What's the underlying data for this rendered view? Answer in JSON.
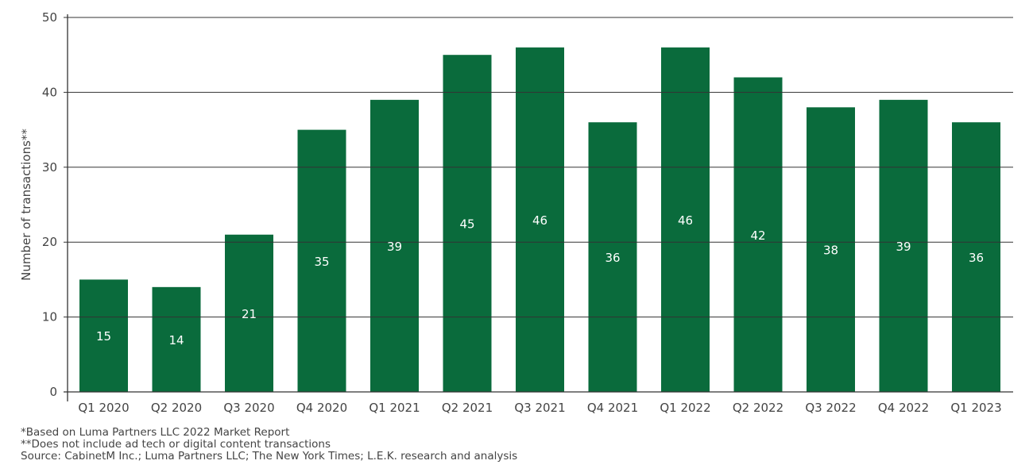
{
  "chart_data": {
    "type": "bar",
    "title": "",
    "xlabel": "",
    "ylabel": "Number of transactions**",
    "ylim": [
      0,
      50
    ],
    "yticks": [
      0,
      10,
      20,
      30,
      40,
      50
    ],
    "grid": true,
    "bar_color": "#0a6b3c",
    "categories": [
      "Q1 2020",
      "Q2 2020",
      "Q3 2020",
      "Q4 2020",
      "Q1 2021",
      "Q2 2021",
      "Q3 2021",
      "Q4 2021",
      "Q1 2022",
      "Q2 2022",
      "Q3 2022",
      "Q4 2022",
      "Q1 2023"
    ],
    "values": [
      15,
      14,
      21,
      35,
      39,
      45,
      46,
      36,
      46,
      42,
      38,
      39,
      36
    ]
  },
  "footnotes": [
    "*Based on Luma Partners LLC 2022 Market Report",
    "**Does not include ad tech or digital content transactions",
    "Source: CabinetM Inc.; Luma Partners LLC; The New York Times; L.E.K. research and analysis"
  ]
}
